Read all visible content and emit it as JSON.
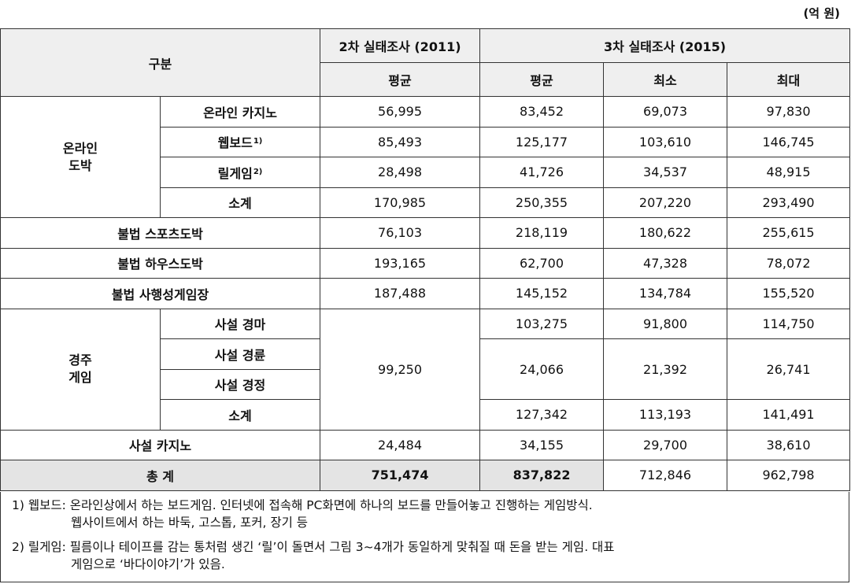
{
  "unit_label": "(억 원)",
  "header": {
    "category": "구분",
    "survey2": "2차 실태조사 (2011)",
    "survey3": "3차 실태조사 (2015)",
    "avg2": "평균",
    "avg3": "평균",
    "min": "최소",
    "max": "최대"
  },
  "online": {
    "group": "온라인\n도박",
    "rows": [
      {
        "label": "온라인 카지노",
        "note": "",
        "s2": "56,995",
        "avg": "83,452",
        "min": "69,073",
        "max": "97,830"
      },
      {
        "label": "웹보드",
        "note": "1)",
        "s2": "85,493",
        "avg": "125,177",
        "min": "103,610",
        "max": "146,745"
      },
      {
        "label": "릴게임",
        "note": "2)",
        "s2": "28,498",
        "avg": "41,726",
        "min": "34,537",
        "max": "48,915"
      },
      {
        "label": "소계",
        "note": "",
        "s2": "170,985",
        "avg": "250,355",
        "min": "207,220",
        "max": "293,490"
      }
    ]
  },
  "illegal": [
    {
      "label": "불법 스포츠도박",
      "s2": "76,103",
      "avg": "218,119",
      "min": "180,622",
      "max": "255,615"
    },
    {
      "label": "불법 하우스도박",
      "s2": "193,165",
      "avg": "62,700",
      "min": "47,328",
      "max": "78,072"
    },
    {
      "label": "불법 사행성게임장",
      "s2": "187,488",
      "avg": "145,152",
      "min": "134,784",
      "max": "155,520"
    }
  ],
  "race": {
    "group": "경주\n게임",
    "s2_merged": "99,250",
    "labels": [
      "사설 경마",
      "사설 경륜",
      "사설 경정",
      "소계"
    ],
    "horse": {
      "avg": "103,275",
      "min": "91,800",
      "max": "114,750"
    },
    "cycle_boat": {
      "avg": "24,066",
      "min": "21,392",
      "max": "26,741"
    },
    "subtotal": {
      "avg": "127,342",
      "min": "113,193",
      "max": "141,491"
    }
  },
  "casino": {
    "label": "사설 카지노",
    "s2": "24,484",
    "avg": "34,155",
    "min": "29,700",
    "max": "38,610"
  },
  "total": {
    "label": "총 계",
    "s2": "751,474",
    "avg": "837,822",
    "min": "712,846",
    "max": "962,798"
  },
  "notes": {
    "n1_line1": "1) 웹보드: 온라인상에서 하는 보드게임. 인터넷에 접속해 PC화면에 하나의 보드를 만들어놓고 진행하는 게임방식.",
    "n1_line2": "웹사이트에서 하는 바둑, 고스톱, 포커, 장기 등",
    "n2_line1": "2) 릴게임: 필름이나 테이프를 감는 통처럼 생긴 ‘릴’이 돌면서 그림 3~4개가 동일하게 맞춰질 때 돈을 받는 게임. 대표",
    "n2_line2": "게임으로 ‘바다이야기’가 있음."
  }
}
